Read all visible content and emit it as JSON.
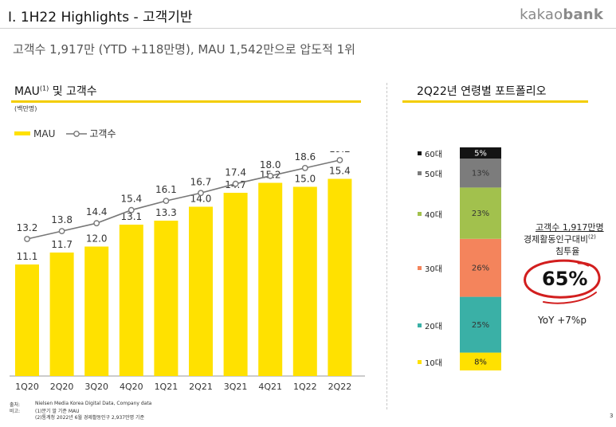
{
  "header": {
    "title": "I. 1H22 Highlights - 고객기반",
    "brand_light": "kakao",
    "brand_bold": "bank",
    "subtitle": "고객수 1,917만 (YTD +118만명), MAU 1,542만으로 압도적 1위"
  },
  "left_section": {
    "title": "MAU",
    "title_sup": "(1)",
    "title_rest": " 및 고객수",
    "unit": "(백만명)",
    "legend_mau": "MAU",
    "legend_customers": "고객수"
  },
  "right_section": {
    "title": "2Q22년 연령별 포트폴리오",
    "customers_line1": "고객수 1,917만명",
    "customers_line2": "경제활동인구대비",
    "customers_line2_sup": "(2)",
    "customers_line3": "침투율",
    "penetration": "65%",
    "yoy": "YoY +7%p"
  },
  "footnotes": {
    "source_label": "출처:",
    "source": "Nielsen Media Korea Digital Data, Company data",
    "note_label": "비고:",
    "note1": "(1)분기 말 기준 MAU",
    "note2": "(2)통계청 2022년 6월 경제활동인구 2,937만명 기준"
  },
  "page_number": "3",
  "colors": {
    "accent_yellow": "#FFE100",
    "rule_yellow": "#F3CD00",
    "line_gray": "#777777",
    "red_ring": "#D21E1E"
  },
  "chart_data": [
    {
      "type": "bar",
      "categories": [
        "1Q20",
        "2Q20",
        "3Q20",
        "4Q20",
        "1Q21",
        "2Q21",
        "3Q21",
        "4Q21",
        "1Q22",
        "2Q22"
      ],
      "series": [
        {
          "name": "MAU",
          "type": "bar",
          "color": "#FFE100",
          "values": [
            11.1,
            11.7,
            12.0,
            13.1,
            13.3,
            14.0,
            14.7,
            15.2,
            15.0,
            15.4
          ]
        },
        {
          "name": "고객수",
          "type": "line",
          "color": "#777777",
          "values": [
            13.2,
            13.8,
            14.4,
            15.4,
            16.1,
            16.7,
            17.4,
            18.0,
            18.6,
            19.2
          ]
        }
      ],
      "title": "MAU(1) 및 고객수",
      "ylabel": "(백만명)",
      "grid": false,
      "legend": "top-left"
    },
    {
      "type": "bar",
      "stacked": true,
      "title": "2Q22년 연령별 포트폴리오",
      "segments": [
        {
          "label": "10대",
          "value": 8,
          "display": "8%",
          "color": "#FFE100"
        },
        {
          "label": "20대",
          "value": 25,
          "display": "25%",
          "color": "#3AB0A6"
        },
        {
          "label": "30대",
          "value": 26,
          "display": "26%",
          "color": "#F4845C"
        },
        {
          "label": "40대",
          "value": 23,
          "display": "23%",
          "color": "#A2C14D"
        },
        {
          "label": "50대",
          "value": 13,
          "display": "13%",
          "color": "#7C7C7C"
        },
        {
          "label": "60대",
          "value": 5,
          "display": "5%",
          "color": "#141414"
        }
      ],
      "legend": "left"
    }
  ]
}
